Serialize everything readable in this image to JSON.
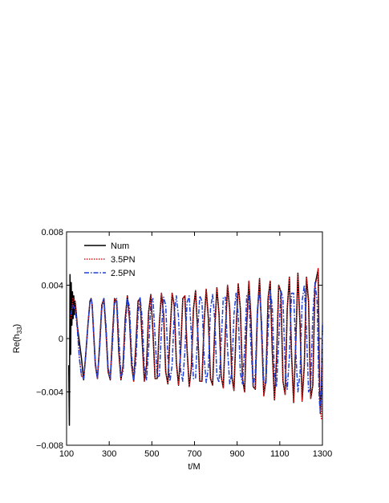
{
  "chart_data": {
    "type": "line",
    "xlabel": "t/M",
    "ylabel": "Re(h",
    "ylabel_subscript": "33",
    "ylabel_close": ")",
    "xlim": [
      100,
      1300
    ],
    "ylim": [
      -0.008,
      0.008
    ],
    "xticks": [
      100,
      300,
      500,
      700,
      900,
      1100,
      1300
    ],
    "xtick_labels": [
      "100",
      "300",
      "500",
      "700",
      "900",
      "1100",
      "1300"
    ],
    "yticks": [
      -0.008,
      -0.004,
      0,
      0.004,
      0.008
    ],
    "ytick_labels": [
      "−0.008",
      "−0.004",
      "0",
      "0.004",
      "0.008"
    ],
    "grid": false,
    "legend_position": "top-left",
    "series": [
      {
        "name": "Num",
        "color": "#000000",
        "style": "solid",
        "x": [
          110,
          113,
          116,
          119,
          122,
          125,
          128,
          131,
          134,
          137,
          140,
          145,
          150,
          170,
          180,
          190,
          200,
          210,
          215,
          220,
          225,
          235,
          245,
          255,
          265,
          275,
          285,
          295,
          305,
          315,
          325,
          335,
          345,
          355,
          365,
          375,
          385,
          395,
          405,
          415,
          425,
          435,
          445,
          455,
          465,
          475,
          485,
          495,
          505,
          515,
          525,
          535,
          545,
          555,
          565,
          575,
          585,
          595,
          605,
          615,
          625,
          635,
          645,
          655,
          665,
          675,
          685,
          695,
          705,
          715,
          725,
          735,
          745,
          755,
          765,
          775,
          785,
          795,
          805,
          815,
          825,
          835,
          845,
          855,
          865,
          875,
          885,
          895,
          905,
          915,
          925,
          935,
          945,
          955,
          965,
          975,
          985,
          995,
          1005,
          1015,
          1025,
          1035,
          1045,
          1055,
          1065,
          1075,
          1085,
          1095,
          1105,
          1115,
          1125,
          1135,
          1145,
          1155,
          1165,
          1175,
          1185,
          1195,
          1205,
          1215,
          1225,
          1235,
          1245,
          1255,
          1265,
          1275,
          1280,
          1285,
          1290,
          1295,
          1300
        ],
        "y": [
          -0.002,
          -0.0065,
          0.0048,
          -0.0012,
          0.0042,
          0.001,
          0.0035,
          0.0015,
          0.0032,
          0.0018,
          0.0028,
          0.002,
          0.001,
          -0.0015,
          -0.0031,
          -0.0012,
          0.001,
          0.0028,
          0.003,
          0.0025,
          0.001,
          -0.002,
          -0.003,
          -0.0005,
          0.0025,
          0.003,
          0.0005,
          -0.0025,
          -0.0031,
          0.0002,
          0.003,
          0.0028,
          -0.001,
          -0.0031,
          -0.002,
          0.0015,
          0.0032,
          0.0015,
          -0.002,
          -0.0032,
          -0.0005,
          0.0028,
          0.003,
          -0.0003,
          -0.0032,
          -0.002,
          0.002,
          0.0033,
          0.0005,
          -0.003,
          -0.003,
          0.001,
          0.0034,
          0.0018,
          -0.0025,
          -0.0034,
          0.0002,
          0.0034,
          0.0025,
          -0.0018,
          -0.0035,
          -0.001,
          0.003,
          0.0032,
          -0.0008,
          -0.0036,
          -0.0022,
          0.0022,
          0.0036,
          0.0005,
          -0.0032,
          -0.0032,
          0.0012,
          0.0037,
          0.0015,
          -0.003,
          -0.0035,
          0.0008,
          0.0038,
          0.0018,
          -0.0028,
          -0.0037,
          0.0005,
          0.004,
          0.0022,
          -0.0028,
          -0.0039,
          0.0005,
          0.0041,
          0.0022,
          -0.003,
          -0.004,
          0.001,
          0.0043,
          0.0015,
          -0.0036,
          -0.0038,
          0.0018,
          0.0045,
          0.0005,
          -0.0043,
          -0.003,
          0.003,
          0.0043,
          -0.001,
          -0.0046,
          -0.0015,
          0.004,
          0.0035,
          -0.0032,
          -0.0042,
          0.0022,
          0.0046,
          -0.0012,
          -0.0048,
          -0.0002,
          0.0049,
          0.001,
          -0.0047,
          -0.002,
          0.0046,
          0.0028,
          -0.0045,
          -0.0035,
          0.004,
          0.0048,
          0.0052,
          -0.002,
          -0.0056,
          -0.004,
          0.001
        ]
      },
      {
        "name": "3.5PN",
        "color": "#e41a1c",
        "style": "dotted",
        "x": [
          120,
          130,
          140,
          150,
          160,
          170,
          180,
          190,
          200,
          210,
          215,
          220,
          225,
          235,
          245,
          255,
          265,
          275,
          285,
          295,
          305,
          315,
          325,
          335,
          345,
          355,
          365,
          375,
          385,
          395,
          405,
          415,
          425,
          435,
          445,
          455,
          465,
          475,
          485,
          495,
          505,
          515,
          525,
          535,
          545,
          555,
          565,
          575,
          585,
          595,
          605,
          615,
          625,
          635,
          645,
          655,
          665,
          675,
          685,
          695,
          705,
          715,
          725,
          735,
          745,
          755,
          765,
          775,
          785,
          795,
          805,
          815,
          825,
          835,
          845,
          855,
          865,
          875,
          885,
          895,
          905,
          915,
          925,
          935,
          945,
          955,
          965,
          975,
          985,
          995,
          1005,
          1015,
          1025,
          1035,
          1045,
          1055,
          1065,
          1075,
          1085,
          1095,
          1105,
          1115,
          1125,
          1135,
          1145,
          1155,
          1165,
          1175,
          1185,
          1195,
          1205,
          1215,
          1225,
          1235,
          1245,
          1255,
          1265,
          1275,
          1280,
          1285,
          1290,
          1295,
          1300
        ],
        "y": [
          0.0015,
          0.003,
          0.0028,
          0.001,
          -0.0015,
          -0.0028,
          -0.003,
          -0.0012,
          0.001,
          0.0028,
          0.003,
          0.0025,
          0.001,
          -0.002,
          -0.003,
          -0.0005,
          0.0025,
          0.003,
          0.0005,
          -0.0025,
          -0.0031,
          0.0002,
          0.003,
          0.0028,
          -0.001,
          -0.0031,
          -0.002,
          0.0015,
          0.0032,
          0.0015,
          -0.002,
          -0.0032,
          -0.0005,
          0.0028,
          0.003,
          -0.0003,
          -0.0032,
          -0.002,
          0.002,
          0.0033,
          0.0005,
          -0.003,
          -0.003,
          0.001,
          0.0034,
          0.0018,
          -0.0025,
          -0.0034,
          0.0002,
          0.0034,
          0.0025,
          -0.0018,
          -0.0035,
          -0.001,
          0.003,
          0.0032,
          -0.0008,
          -0.0036,
          -0.0022,
          0.0022,
          0.0036,
          0.0005,
          -0.0032,
          -0.0032,
          0.0012,
          0.0037,
          0.0015,
          -0.003,
          -0.0035,
          0.0008,
          0.0038,
          0.0018,
          -0.0028,
          -0.0037,
          0.0005,
          0.004,
          0.0022,
          -0.0028,
          -0.0039,
          0.0005,
          0.0041,
          0.0022,
          -0.003,
          -0.004,
          0.001,
          0.0043,
          0.0015,
          -0.0036,
          -0.0038,
          0.0018,
          0.0045,
          0.0005,
          -0.0043,
          -0.003,
          0.003,
          0.0043,
          -0.001,
          -0.0046,
          -0.0015,
          0.004,
          0.0035,
          -0.0032,
          -0.0042,
          0.0022,
          0.0046,
          -0.0012,
          -0.0048,
          -0.0002,
          0.0049,
          0.001,
          -0.0047,
          -0.002,
          0.0046,
          0.0028,
          -0.0045,
          -0.0035,
          0.004,
          0.0045,
          0.0053,
          -0.001,
          -0.0055,
          -0.006,
          -0.002
        ]
      },
      {
        "name": "2.5PN",
        "color": "#1f3fd6",
        "style": "dashdot",
        "x": [
          120,
          130,
          140,
          150,
          160,
          170,
          180,
          190,
          200,
          210,
          215,
          220,
          225,
          235,
          245,
          255,
          265,
          275,
          285,
          295,
          305,
          315,
          325,
          335,
          345,
          355,
          365,
          375,
          385,
          395,
          405,
          415,
          425,
          435,
          445,
          455,
          465,
          475,
          485,
          495,
          505,
          515,
          525,
          535,
          545,
          555,
          565,
          575,
          585,
          595,
          605,
          615,
          625,
          635,
          645,
          655,
          665,
          675,
          685,
          695,
          705,
          715,
          725,
          735,
          745,
          755,
          765,
          775,
          785,
          795,
          805,
          815,
          825,
          835,
          845,
          855,
          865,
          875,
          885,
          895,
          905,
          915,
          925,
          935,
          945,
          955,
          965,
          975,
          985,
          995,
          1005,
          1015,
          1025,
          1035,
          1045,
          1055,
          1065,
          1075,
          1085,
          1095,
          1105,
          1115,
          1125,
          1135,
          1145,
          1155,
          1165,
          1175,
          1185,
          1195,
          1205,
          1215,
          1225,
          1235,
          1245,
          1255,
          1265,
          1275,
          1280,
          1285,
          1290,
          1295,
          1300
        ],
        "y": [
          0.0018,
          0.0025,
          0.0022,
          0.0008,
          -0.0015,
          -0.0028,
          -0.003,
          -0.0012,
          0.001,
          0.0028,
          0.003,
          0.0026,
          0.0012,
          -0.0018,
          -0.003,
          -0.0008,
          0.0022,
          0.003,
          0.001,
          -0.0022,
          -0.003,
          -0.0005,
          0.0026,
          0.003,
          0.0002,
          -0.0028,
          -0.0026,
          0.0006,
          0.003,
          0.0024,
          -0.0012,
          -0.0031,
          -0.0018,
          0.0018,
          0.0031,
          0.0014,
          -0.0022,
          -0.0031,
          -0.0008,
          0.0026,
          0.003,
          0.0002,
          -0.0029,
          -0.0028,
          0.0006,
          0.0031,
          0.0025,
          -0.0014,
          -0.0032,
          -0.002,
          0.0018,
          0.0032,
          0.0016,
          -0.0024,
          -0.0032,
          -0.001,
          0.0027,
          0.0032,
          0.0004,
          -0.003,
          -0.003,
          0.0006,
          0.0032,
          0.0028,
          -0.0014,
          -0.0033,
          -0.0022,
          0.0022,
          0.0033,
          0.0014,
          -0.0028,
          -0.0033,
          -0.0004,
          0.0031,
          0.0031,
          -0.0008,
          -0.0034,
          -0.0026,
          0.0018,
          0.0034,
          0.0018,
          -0.0026,
          -0.0034,
          -0.0008,
          0.0032,
          0.0032,
          -0.0006,
          -0.0035,
          -0.0026,
          0.0022,
          0.0035,
          0.0012,
          -0.0032,
          -0.0034,
          0.0005,
          0.0036,
          0.0024,
          -0.0028,
          -0.0036,
          -0.0002,
          0.0036,
          0.003,
          -0.0022,
          -0.0038,
          -0.0014,
          0.0034,
          0.0034,
          -0.001,
          -0.004,
          -0.0026,
          0.0028,
          0.004,
          0.0006,
          -0.004,
          -0.0036,
          0.0018,
          0.0042,
          0.0028,
          -0.0012,
          -0.0045,
          -0.0055,
          -0.004,
          0.0012
        ]
      }
    ]
  }
}
